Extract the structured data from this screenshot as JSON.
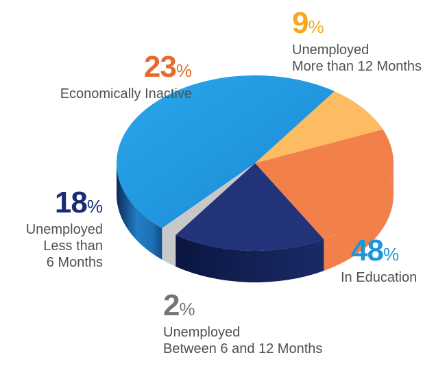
{
  "chart_data": {
    "type": "pie",
    "title": "",
    "style": "3d-tilted",
    "slices": [
      {
        "value": 9,
        "percent_label": "9",
        "label_lines": [
          "Unemployed",
          "More than 12 Months"
        ],
        "color": "#fdbb62",
        "label_color": "#f5a81c"
      },
      {
        "value": 23,
        "percent_label": "23",
        "label_lines": [
          "Economically Inactive"
        ],
        "color": "#f2804a",
        "label_color": "#e9682a"
      },
      {
        "value": 18,
        "percent_label": "18",
        "label_lines": [
          "Unemployed",
          "Less than",
          "6 Months"
        ],
        "color": "#22337a",
        "label_color": "#1c2b74"
      },
      {
        "value": 2,
        "percent_label": "2",
        "label_lines": [
          "Unemployed",
          "Between 6 and 12 Months"
        ],
        "color": "#c8c8c8",
        "label_color": "#757575"
      },
      {
        "value": 48,
        "percent_label": "48",
        "label_lines": [
          "In Education"
        ],
        "color": "#1f9be0",
        "label_color": "#1e96dc"
      }
    ],
    "percent_symbol": "%"
  }
}
